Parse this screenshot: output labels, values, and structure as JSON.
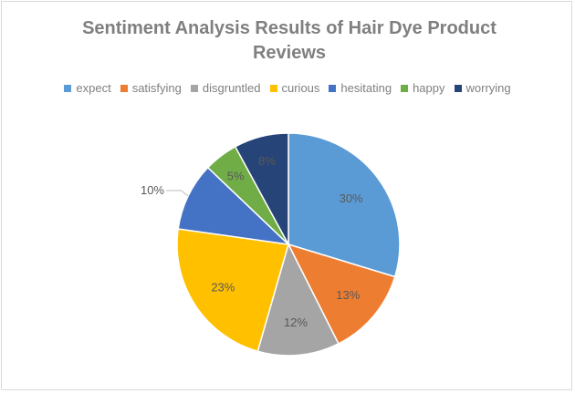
{
  "chart_data": {
    "type": "pie",
    "title": "Sentiment Analysis Results of Hair Dye Product Reviews",
    "legend_position": "top",
    "categories": [
      "expect",
      "satisfying",
      "disgruntled",
      "curious",
      "hesitating",
      "happy",
      "worrying"
    ],
    "values": [
      30,
      13,
      12,
      23,
      10,
      5,
      8
    ],
    "labels": [
      "30%",
      "13%",
      "12%",
      "23%",
      "10%",
      "5%",
      "8%"
    ],
    "colors": [
      "#5b9bd5",
      "#ed7d31",
      "#a5a5a5",
      "#ffc000",
      "#4472c4",
      "#70ad47",
      "#264478"
    ]
  }
}
